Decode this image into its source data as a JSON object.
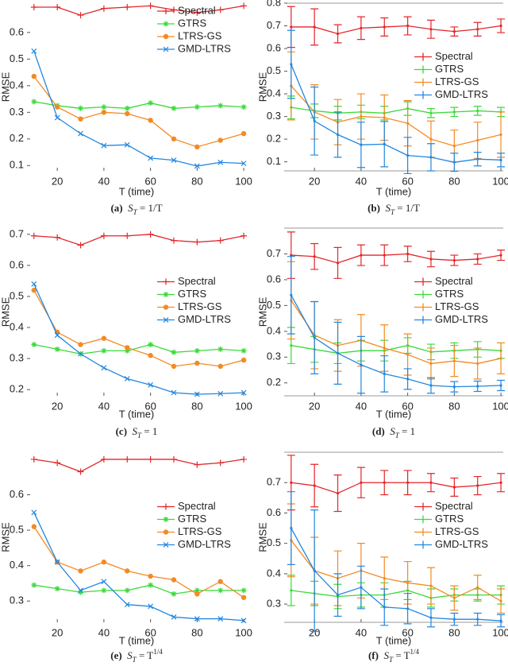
{
  "chart_data": [
    {
      "type": "line",
      "caption_label": "(a)",
      "formula": [
        "S",
        "T",
        " = 1/T"
      ],
      "x_label": "T (time)",
      "y_label": "RMSE",
      "x": [
        10,
        20,
        30,
        40,
        50,
        60,
        70,
        80,
        90,
        100
      ],
      "xlim": [
        7,
        101
      ],
      "xticks": [
        20,
        40,
        60,
        80,
        100
      ],
      "ylim": [
        0.08,
        0.71
      ],
      "yticks": [
        0.1,
        0.2,
        0.3,
        0.4,
        0.5,
        0.6
      ],
      "legend": "upper right",
      "box": false,
      "series": [
        {
          "name": "Spectral",
          "color": "#e3262a",
          "marker": "+",
          "values": [
            0.695,
            0.695,
            0.665,
            0.69,
            0.695,
            0.7,
            0.685,
            0.675,
            0.685,
            0.7
          ]
        },
        {
          "name": "GTRS",
          "color": "#3ada3a",
          "marker": "*",
          "values": [
            0.34,
            0.325,
            0.315,
            0.32,
            0.315,
            0.335,
            0.315,
            0.32,
            0.325,
            0.32
          ]
        },
        {
          "name": "LTRS-GS",
          "color": "#f48a22",
          "marker": "o",
          "values": [
            0.435,
            0.32,
            0.275,
            0.3,
            0.295,
            0.27,
            0.2,
            0.17,
            0.195,
            0.22
          ]
        },
        {
          "name": "GMD-LTRS",
          "color": "#2287e0",
          "marker": "x",
          "values": [
            0.53,
            0.28,
            0.22,
            0.175,
            0.178,
            0.128,
            0.12,
            0.098,
            0.112,
            0.108
          ]
        }
      ]
    },
    {
      "type": "errorbar",
      "caption_label": "(b)",
      "formula": [
        "S",
        "T",
        " = 1/T"
      ],
      "x_label": "T (time)",
      "y_label": "RMSE",
      "x": [
        10,
        20,
        30,
        40,
        50,
        60,
        70,
        80,
        90,
        100
      ],
      "xlim": [
        7,
        101
      ],
      "xticks": [
        20,
        40,
        60,
        80,
        100
      ],
      "ylim": [
        0.06,
        0.8
      ],
      "yticks": [
        0.1,
        0.2,
        0.3,
        0.4,
        0.5,
        0.6,
        0.7,
        0.8
      ],
      "legend": "center right",
      "box": true,
      "series": [
        {
          "name": "Spectral",
          "color": "#e3262a",
          "values": [
            0.695,
            0.695,
            0.665,
            0.69,
            0.695,
            0.7,
            0.685,
            0.675,
            0.685,
            0.7
          ],
          "errors": [
            0.09,
            0.08,
            0.04,
            0.05,
            0.04,
            0.04,
            0.04,
            0.02,
            0.03,
            0.03
          ]
        },
        {
          "name": "GTRS",
          "color": "#3ada3a",
          "values": [
            0.34,
            0.325,
            0.315,
            0.32,
            0.315,
            0.335,
            0.315,
            0.32,
            0.325,
            0.32
          ],
          "errors": [
            0.05,
            0.03,
            0.03,
            0.03,
            0.03,
            0.03,
            0.02,
            0.02,
            0.02,
            0.02
          ]
        },
        {
          "name": "LTRS-GS",
          "color": "#f48a22",
          "values": [
            0.435,
            0.32,
            0.275,
            0.3,
            0.295,
            0.27,
            0.2,
            0.17,
            0.195,
            0.22
          ],
          "errors": [
            0.15,
            0.12,
            0.1,
            0.1,
            0.1,
            0.1,
            0.08,
            0.07,
            0.08,
            0.1
          ]
        },
        {
          "name": "GMD-LTRS",
          "color": "#2287e0",
          "values": [
            0.53,
            0.28,
            0.22,
            0.175,
            0.178,
            0.128,
            0.12,
            0.098,
            0.112,
            0.108
          ],
          "errors": [
            0.15,
            0.15,
            0.1,
            0.1,
            0.1,
            0.08,
            0.06,
            0.04,
            0.03,
            0.03
          ]
        }
      ]
    },
    {
      "type": "line",
      "caption_label": "(c)",
      "formula": [
        "S",
        "T",
        " = 1"
      ],
      "x_label": "T (time)",
      "y_label": "RMSE",
      "x": [
        10,
        20,
        30,
        40,
        50,
        60,
        70,
        80,
        90,
        100
      ],
      "xlim": [
        7,
        101
      ],
      "xticks": [
        20,
        40,
        60,
        80,
        100
      ],
      "ylim": [
        0.18,
        0.72
      ],
      "yticks": [
        0.2,
        0.3,
        0.4,
        0.5,
        0.6,
        0.7
      ],
      "legend": "center right",
      "box": false,
      "series": [
        {
          "name": "Spectral",
          "color": "#e3262a",
          "marker": "+",
          "values": [
            0.695,
            0.69,
            0.665,
            0.695,
            0.695,
            0.7,
            0.68,
            0.675,
            0.68,
            0.695
          ]
        },
        {
          "name": "GTRS",
          "color": "#3ada3a",
          "marker": "*",
          "values": [
            0.345,
            0.33,
            0.315,
            0.325,
            0.325,
            0.345,
            0.32,
            0.325,
            0.33,
            0.325
          ]
        },
        {
          "name": "LTRS-GS",
          "color": "#f48a22",
          "marker": "o",
          "values": [
            0.52,
            0.385,
            0.345,
            0.365,
            0.335,
            0.31,
            0.275,
            0.285,
            0.275,
            0.295
          ]
        },
        {
          "name": "GMD-LTRS",
          "color": "#2287e0",
          "marker": "x",
          "values": [
            0.54,
            0.375,
            0.315,
            0.27,
            0.235,
            0.215,
            0.19,
            0.185,
            0.187,
            0.19
          ]
        }
      ]
    },
    {
      "type": "errorbar",
      "caption_label": "(d)",
      "formula": [
        "S",
        "T",
        " = 1"
      ],
      "x_label": "T (time)",
      "y_label": "RMSE",
      "x": [
        10,
        20,
        30,
        40,
        50,
        60,
        70,
        80,
        90,
        100
      ],
      "xlim": [
        7,
        101
      ],
      "xticks": [
        20,
        40,
        60,
        80,
        100
      ],
      "ylim": [
        0.15,
        0.8
      ],
      "yticks": [
        0.2,
        0.3,
        0.4,
        0.5,
        0.6,
        0.7
      ],
      "legend": "center right",
      "box": true,
      "series": [
        {
          "name": "Spectral",
          "color": "#e3262a",
          "values": [
            0.695,
            0.69,
            0.665,
            0.695,
            0.695,
            0.7,
            0.68,
            0.675,
            0.68,
            0.695
          ],
          "errors": [
            0.09,
            0.05,
            0.06,
            0.04,
            0.04,
            0.03,
            0.03,
            0.02,
            0.02,
            0.02
          ]
        },
        {
          "name": "GTRS",
          "color": "#3ada3a",
          "values": [
            0.345,
            0.33,
            0.315,
            0.325,
            0.325,
            0.345,
            0.32,
            0.325,
            0.33,
            0.325
          ],
          "errors": [
            0.07,
            0.05,
            0.04,
            0.04,
            0.04,
            0.03,
            0.03,
            0.03,
            0.03,
            0.03
          ]
        },
        {
          "name": "LTRS-GS",
          "color": "#f48a22",
          "values": [
            0.52,
            0.385,
            0.345,
            0.365,
            0.335,
            0.31,
            0.275,
            0.285,
            0.275,
            0.295
          ],
          "errors": [
            0.15,
            0.13,
            0.1,
            0.1,
            0.09,
            0.08,
            0.06,
            0.06,
            0.06,
            0.06
          ]
        },
        {
          "name": "GMD-LTRS",
          "color": "#2287e0",
          "values": [
            0.54,
            0.375,
            0.315,
            0.27,
            0.235,
            0.215,
            0.19,
            0.185,
            0.187,
            0.19
          ],
          "errors": [
            0.15,
            0.14,
            0.12,
            0.11,
            0.07,
            0.04,
            0.03,
            0.02,
            0.02,
            0.02
          ]
        }
      ]
    },
    {
      "type": "line",
      "caption_label": "(e)",
      "formula": [
        "S",
        "T",
        " = T",
        "1/4"
      ],
      "x_label": "T (time)",
      "y_label": "RMSE",
      "x": [
        10,
        20,
        30,
        40,
        50,
        60,
        70,
        80,
        90,
        100
      ],
      "xlim": [
        7,
        101
      ],
      "xticks": [
        20,
        40,
        60,
        80,
        100
      ],
      "ylim": [
        0.24,
        0.72
      ],
      "yticks": [
        0.3,
        0.4,
        0.5,
        0.6
      ],
      "legend": "center right",
      "box": false,
      "series": [
        {
          "name": "Spectral",
          "color": "#e3262a",
          "marker": "+",
          "values": [
            0.7,
            0.69,
            0.665,
            0.7,
            0.7,
            0.7,
            0.7,
            0.685,
            0.69,
            0.7
          ]
        },
        {
          "name": "GTRS",
          "color": "#3ada3a",
          "marker": "*",
          "values": [
            0.345,
            0.335,
            0.325,
            0.33,
            0.33,
            0.345,
            0.32,
            0.33,
            0.33,
            0.33
          ]
        },
        {
          "name": "LTRS-GS",
          "color": "#f48a22",
          "marker": "o",
          "values": [
            0.51,
            0.41,
            0.385,
            0.41,
            0.385,
            0.37,
            0.36,
            0.32,
            0.355,
            0.31
          ]
        },
        {
          "name": "GMD-LTRS",
          "color": "#2287e0",
          "marker": "x",
          "values": [
            0.55,
            0.41,
            0.33,
            0.355,
            0.29,
            0.285,
            0.255,
            0.25,
            0.25,
            0.245
          ]
        }
      ]
    },
    {
      "type": "errorbar",
      "caption_label": "(f)",
      "formula": [
        "S",
        "T",
        " = T",
        "1/4"
      ],
      "x_label": "T (time)",
      "y_label": "RMSE",
      "x": [
        10,
        20,
        30,
        40,
        50,
        60,
        70,
        80,
        90,
        100
      ],
      "xlim": [
        7,
        101
      ],
      "xticks": [
        20,
        40,
        60,
        80,
        100
      ],
      "ylim": [
        0.24,
        0.8
      ],
      "yticks": [
        0.3,
        0.4,
        0.5,
        0.6,
        0.7
      ],
      "legend": "center right",
      "box": true,
      "series": [
        {
          "name": "Spectral",
          "color": "#e3262a",
          "values": [
            0.7,
            0.69,
            0.665,
            0.7,
            0.7,
            0.7,
            0.7,
            0.685,
            0.69,
            0.7
          ],
          "errors": [
            0.09,
            0.07,
            0.06,
            0.05,
            0.04,
            0.04,
            0.03,
            0.03,
            0.03,
            0.03
          ]
        },
        {
          "name": "GTRS",
          "color": "#3ada3a",
          "values": [
            0.345,
            0.335,
            0.325,
            0.33,
            0.33,
            0.345,
            0.32,
            0.33,
            0.33,
            0.33
          ],
          "errors": [
            0.05,
            0.04,
            0.04,
            0.04,
            0.04,
            0.03,
            0.03,
            0.02,
            0.02,
            0.03
          ]
        },
        {
          "name": "LTRS-GS",
          "color": "#f48a22",
          "values": [
            0.51,
            0.41,
            0.385,
            0.41,
            0.385,
            0.37,
            0.36,
            0.32,
            0.355,
            0.31
          ],
          "errors": [
            0.12,
            0.11,
            0.09,
            0.09,
            0.07,
            0.07,
            0.06,
            0.04,
            0.04,
            0.04
          ]
        },
        {
          "name": "GMD-LTRS",
          "color": "#2287e0",
          "values": [
            0.55,
            0.41,
            0.33,
            0.355,
            0.29,
            0.285,
            0.255,
            0.25,
            0.25,
            0.245
          ],
          "errors": [
            0.12,
            0.2,
            0.07,
            0.07,
            0.06,
            0.05,
            0.03,
            0.02,
            0.02,
            0.02
          ]
        }
      ]
    }
  ]
}
